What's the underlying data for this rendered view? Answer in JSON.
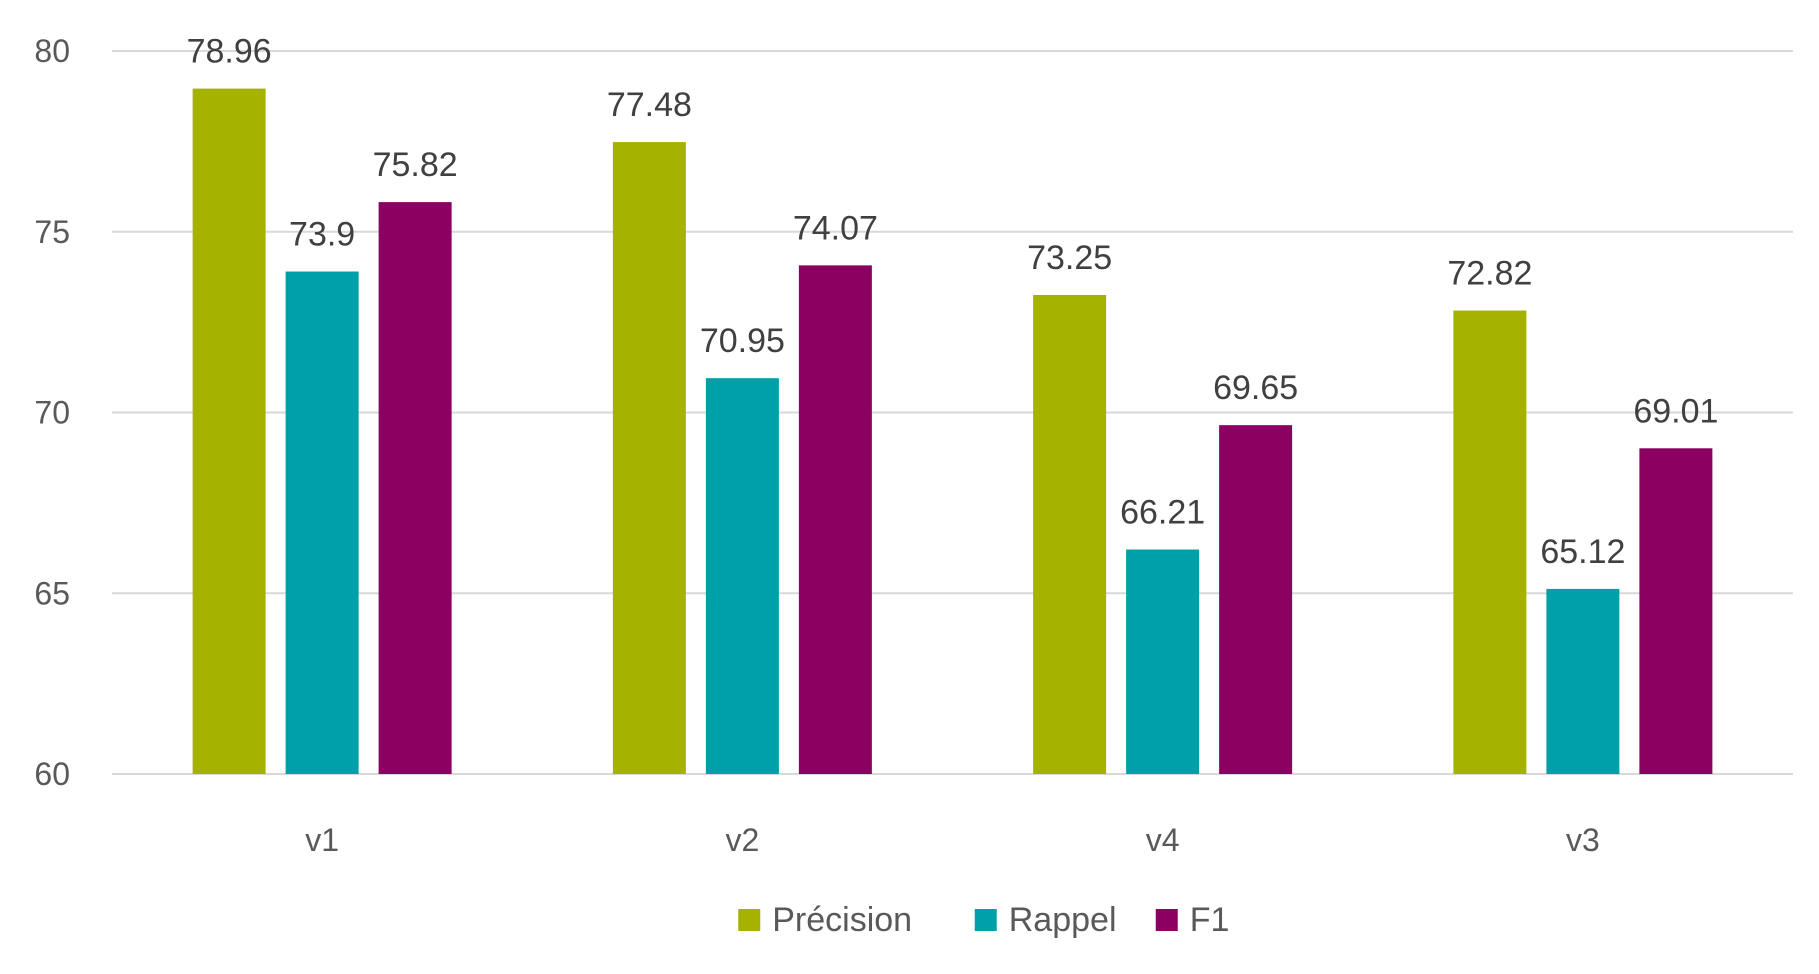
{
  "chart_data": {
    "type": "bar",
    "title": "",
    "xlabel": "",
    "ylabel": "",
    "categories": [
      "v1",
      "v2",
      "v4",
      "v3"
    ],
    "series": [
      {
        "name": "Précision",
        "color": "#a5b200",
        "values": [
          78.96,
          77.48,
          73.25,
          72.82
        ]
      },
      {
        "name": "Rappel",
        "color": "#00a0a8",
        "values": [
          73.9,
          70.95,
          66.21,
          65.12
        ]
      },
      {
        "name": "F1",
        "color": "#8c0062",
        "values": [
          75.82,
          74.07,
          69.65,
          69.01
        ]
      }
    ],
    "ylim": [
      60,
      80
    ],
    "yticks": [
      60,
      65,
      70,
      75,
      80
    ],
    "data_labels": [
      [
        "78.96",
        "77.48",
        "73.25",
        "72.82"
      ],
      [
        "73.9",
        "70.95",
        "66.21",
        "65.12"
      ],
      [
        "75.82",
        "74.07",
        "69.65",
        "69.01"
      ]
    ],
    "grid": true,
    "legend_position": "bottom"
  }
}
